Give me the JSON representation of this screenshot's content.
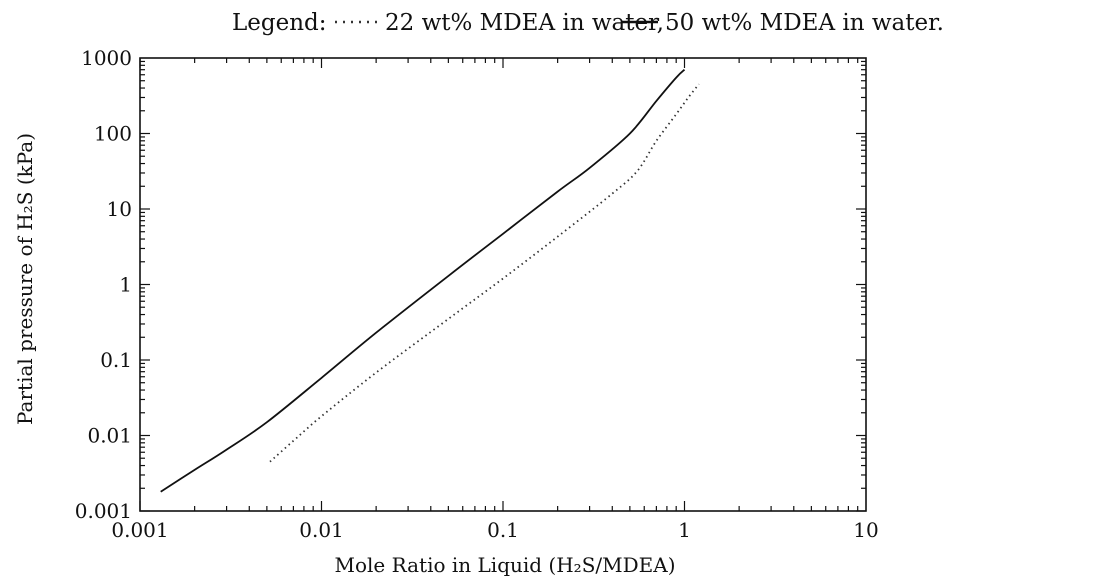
{
  "chart_data": {
    "type": "line",
    "legend": {
      "prefix": "Legend:",
      "placement": "top, above plot"
    },
    "xlabel": "Mole Ratio in Liquid (H₂S/MDEA)",
    "ylabel": "Partial pressure of H₂S (kPa)",
    "xscale": "log",
    "yscale": "log",
    "xlim": [
      0.001,
      10
    ],
    "ylim": [
      0.001,
      1000
    ],
    "grid": false,
    "x_ticks": [
      {
        "value": 0.001,
        "label": "0.001"
      },
      {
        "value": 0.01,
        "label": "0.01"
      },
      {
        "value": 0.1,
        "label": "0.1"
      },
      {
        "value": 1,
        "label": "1"
      },
      {
        "value": 10,
        "label": "10"
      }
    ],
    "y_ticks": [
      {
        "value": 0.001,
        "label": "0.001"
      },
      {
        "value": 0.01,
        "label": "0.01"
      },
      {
        "value": 0.1,
        "label": "0.1"
      },
      {
        "value": 1,
        "label": "1"
      },
      {
        "value": 10,
        "label": "10"
      },
      {
        "value": 100,
        "label": "100"
      },
      {
        "value": 1000,
        "label": "1000"
      }
    ],
    "series": [
      {
        "name": "22 wt% MDEA in water,",
        "style": "dotted",
        "color": "#333333",
        "x": [
          0.0052,
          0.007,
          0.01,
          0.02,
          0.05,
          0.1,
          0.2,
          0.4,
          0.55,
          0.7,
          0.9,
          1.05,
          1.2
        ],
        "y": [
          0.0045,
          0.0085,
          0.018,
          0.068,
          0.35,
          1.2,
          4.3,
          16,
          32,
          80,
          180,
          300,
          450
        ]
      },
      {
        "name": "50 wt% MDEA in water.",
        "style": "solid",
        "color": "#111111",
        "x": [
          0.0013,
          0.002,
          0.003,
          0.005,
          0.01,
          0.02,
          0.05,
          0.1,
          0.2,
          0.3,
          0.5,
          0.7,
          0.9,
          1.0
        ],
        "y": [
          0.0018,
          0.0035,
          0.0065,
          0.015,
          0.058,
          0.23,
          1.3,
          4.7,
          17,
          35,
          100,
          270,
          550,
          700
        ]
      }
    ]
  }
}
